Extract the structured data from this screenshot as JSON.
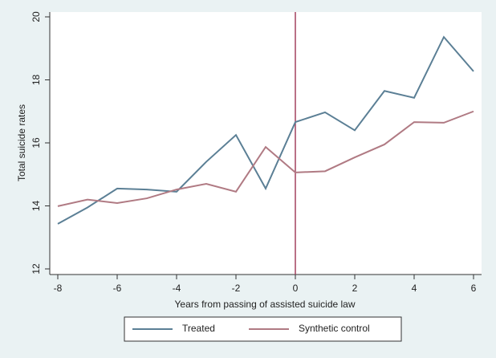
{
  "chart_data": {
    "type": "line",
    "x_label": "Years from passing of assisted suicide law",
    "y_label": "Total suicide rates",
    "x": [
      -8,
      -7,
      -6,
      -5,
      -4,
      -3,
      -2,
      -1,
      0,
      1,
      2,
      3,
      4,
      5,
      6
    ],
    "series": [
      {
        "name": "Treated",
        "color": "#5b7f95",
        "values": [
          13.43,
          13.95,
          14.55,
          14.52,
          14.45,
          15.4,
          16.25,
          14.55,
          16.66,
          16.97,
          16.4,
          17.65,
          17.43,
          19.36,
          18.27
        ]
      },
      {
        "name": "Synthetic control",
        "color": "#b07a83",
        "values": [
          13.99,
          14.2,
          14.09,
          14.24,
          14.52,
          14.7,
          14.45,
          15.87,
          15.06,
          15.1,
          15.54,
          15.95,
          16.66,
          16.64,
          17.0
        ]
      }
    ],
    "xlim": [
      -8,
      6
    ],
    "xticks": [
      -8,
      -6,
      -4,
      -2,
      0,
      2,
      4,
      6
    ],
    "ylim": [
      12,
      20
    ],
    "yticks": [
      12,
      14,
      16,
      18,
      20
    ],
    "vline": 0,
    "vline_color": "#a3405f",
    "grid": false,
    "legend": "bottom"
  }
}
